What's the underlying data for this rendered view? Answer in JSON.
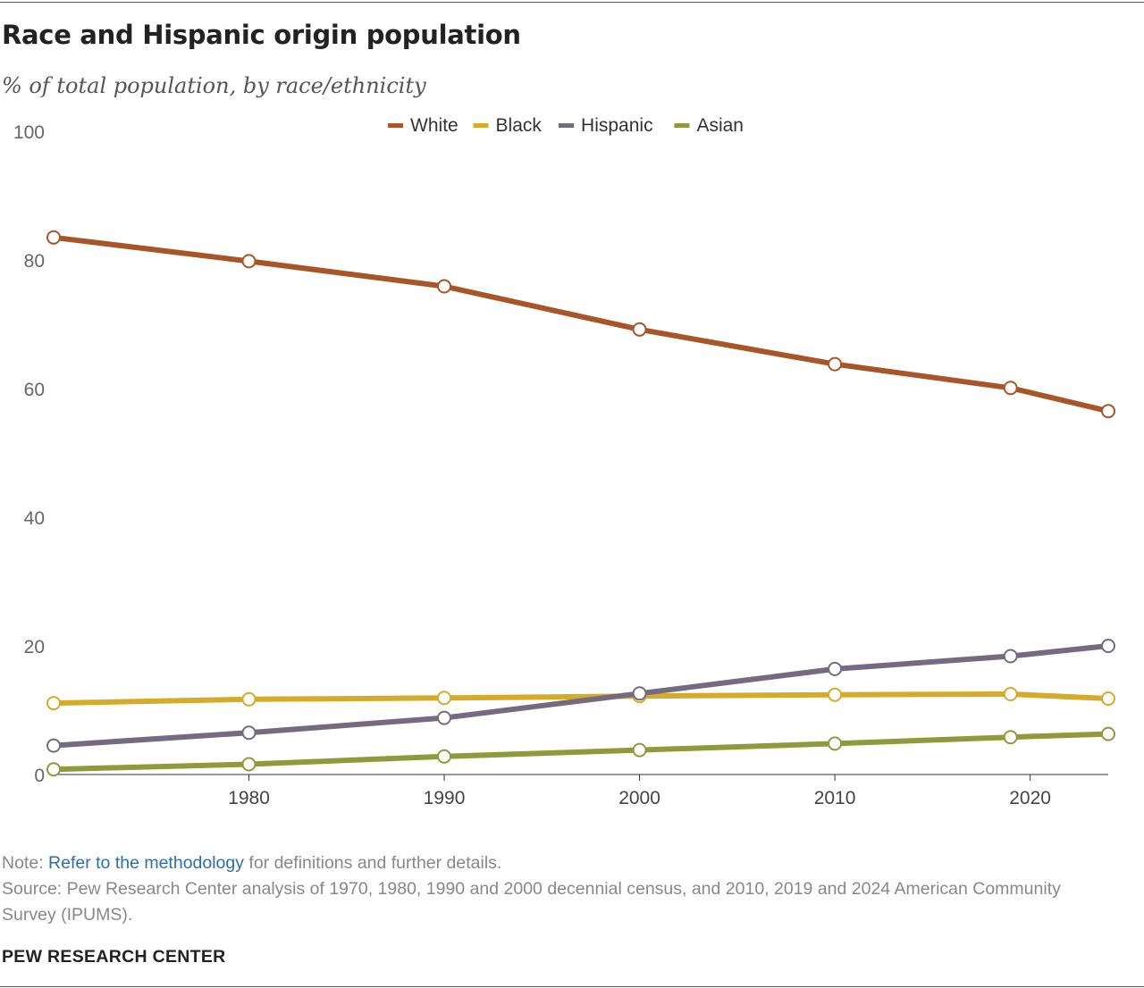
{
  "title": "Race and Hispanic origin population",
  "subtitle": "% of total population, by race/ethnicity",
  "note_prefix": "Note: ",
  "note_link": "Refer to the methodology",
  "note_suffix": " for definitions and further details.",
  "source": "Source: Pew Research Center analysis of 1970, 1980, 1990 and 2000 decennial census, and 2010, 2019 and 2024 American Community Survey (IPUMS).",
  "brand": "PEW RESEARCH CENTER",
  "chart_data": {
    "type": "line",
    "title": "Race and Hispanic origin population",
    "subtitle": "% of total population, by race/ethnicity",
    "xlabel": "",
    "ylabel": "",
    "x": [
      1970,
      1980,
      1990,
      2000,
      2010,
      2019,
      2024
    ],
    "xticks": [
      1980,
      1990,
      2000,
      2010,
      2020
    ],
    "yticks": [
      0,
      20,
      40,
      60,
      80,
      100
    ],
    "xlim": [
      1970,
      2024
    ],
    "ylim": [
      0,
      100
    ],
    "grid": false,
    "legend_position": "top-center",
    "series": [
      {
        "name": "White",
        "color": "#a9552a",
        "values": [
          83.5,
          79.8,
          75.9,
          69.2,
          63.8,
          60.1,
          56.5
        ]
      },
      {
        "name": "Black",
        "color": "#d5ab2c",
        "values": [
          11.1,
          11.7,
          11.9,
          12.2,
          12.4,
          12.5,
          11.8
        ]
      },
      {
        "name": "Hispanic",
        "color": "#756a80",
        "values": [
          4.5,
          6.5,
          8.8,
          12.6,
          16.4,
          18.4,
          20.0
        ]
      },
      {
        "name": "Asian",
        "color": "#8e9a3c",
        "values": [
          0.8,
          1.6,
          2.8,
          3.8,
          4.8,
          5.8,
          6.3
        ]
      }
    ]
  }
}
